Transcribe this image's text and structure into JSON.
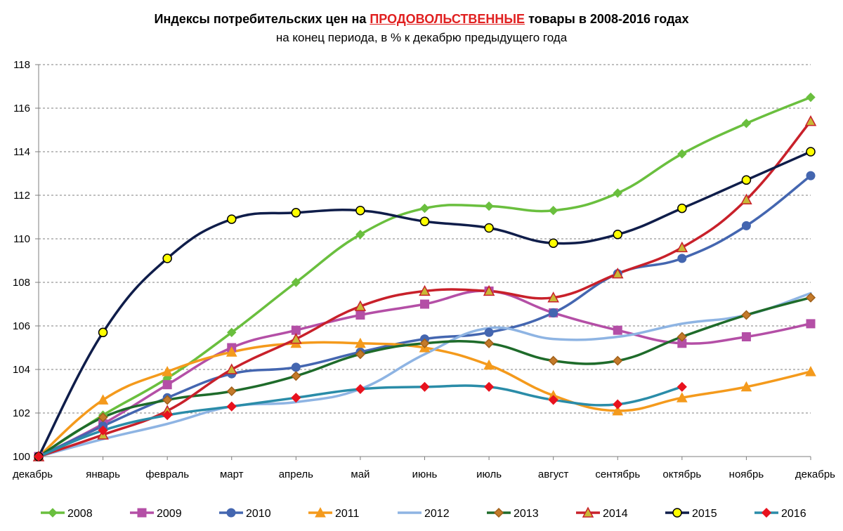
{
  "chart_data": {
    "type": "line",
    "title_prefix": "Индексы потребительских цен на ",
    "title_highlight": "ПРОДОВОЛЬСТВЕННЫЕ",
    "title_suffix": "  товары в 2008-2016 годах",
    "subtitle": "на конец периода, в % к декабрю предыдущего года",
    "categories": [
      "декабрь",
      "январь",
      "февраль",
      "март",
      "апрель",
      "май",
      "июнь",
      "июль",
      "август",
      "сентябрь",
      "октябрь",
      "ноябрь",
      "декабрь"
    ],
    "ylim": [
      100,
      118
    ],
    "yticks": [
      100,
      102,
      104,
      106,
      108,
      110,
      112,
      114,
      116,
      118
    ],
    "grid": true,
    "legend_position": "bottom",
    "series": [
      {
        "name": "2008",
        "color": "#6abf3e",
        "marker": "diamond",
        "values": [
          100,
          101.9,
          103.6,
          105.7,
          108.0,
          110.2,
          111.4,
          111.5,
          111.3,
          112.1,
          113.9,
          115.3,
          116.5
        ]
      },
      {
        "name": "2009",
        "color": "#b44fa6",
        "marker": "square",
        "values": [
          100,
          101.5,
          103.3,
          105.0,
          105.8,
          106.5,
          107.0,
          107.6,
          106.6,
          105.8,
          105.2,
          105.5,
          106.1
        ]
      },
      {
        "name": "2010",
        "color": "#4466b0",
        "marker": "circle",
        "values": [
          100,
          101.4,
          102.7,
          103.8,
          104.1,
          104.8,
          105.4,
          105.7,
          106.6,
          108.4,
          109.1,
          110.6,
          112.9
        ]
      },
      {
        "name": "2011",
        "color": "#f49a1c",
        "marker": "triangle",
        "values": [
          100,
          102.6,
          103.9,
          104.8,
          105.2,
          105.2,
          105.0,
          104.2,
          102.8,
          102.1,
          102.7,
          103.2,
          103.9
        ]
      },
      {
        "name": "2012",
        "color": "#8eb4e3",
        "marker": "none",
        "values": [
          100,
          100.8,
          101.5,
          102.3,
          102.5,
          103.1,
          104.7,
          105.9,
          105.4,
          105.5,
          106.1,
          106.5,
          107.5
        ]
      },
      {
        "name": "2013",
        "color": "#1e6b2a",
        "marker": "diamond",
        "values": [
          100,
          101.8,
          102.6,
          103.0,
          103.7,
          104.7,
          105.2,
          105.2,
          104.4,
          104.4,
          105.5,
          106.5,
          107.3
        ]
      },
      {
        "name": "2014",
        "color": "#c8202a",
        "marker": "triangle",
        "values": [
          100,
          101.0,
          102.1,
          104.0,
          105.4,
          106.9,
          107.6,
          107.6,
          107.3,
          108.4,
          109.6,
          111.8,
          115.4
        ]
      },
      {
        "name": "2015",
        "color": "#0f1d4a",
        "marker": "circle",
        "values": [
          100,
          105.7,
          109.1,
          110.9,
          111.2,
          111.3,
          110.8,
          110.5,
          109.8,
          110.2,
          111.4,
          112.7,
          114.0
        ]
      },
      {
        "name": "2016",
        "color": "#2a8ca8",
        "marker": "diamond",
        "values": [
          100,
          101.2,
          101.9,
          102.3,
          102.7,
          103.1,
          103.2,
          103.2,
          102.6,
          102.4,
          103.2,
          null,
          null
        ]
      }
    ]
  }
}
